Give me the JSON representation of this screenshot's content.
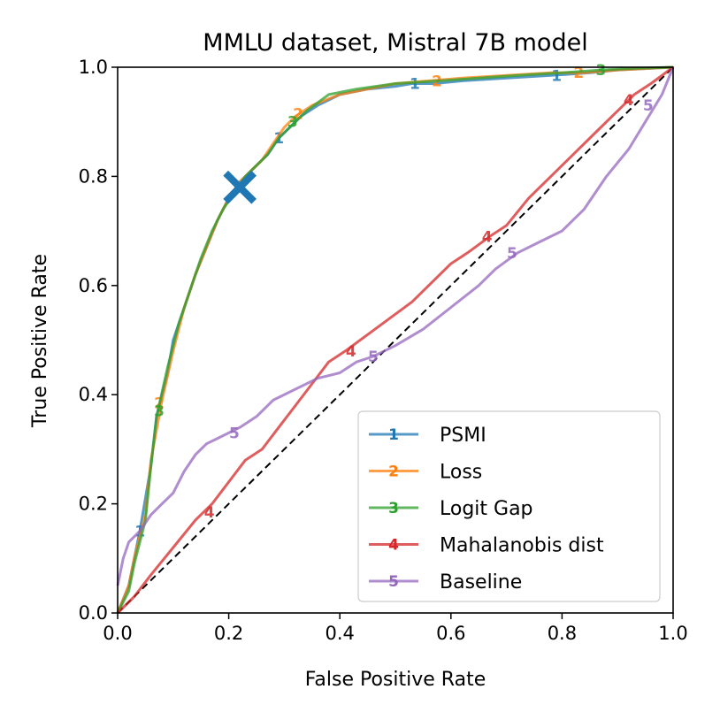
{
  "chart_data": {
    "type": "line",
    "title": "MMLU dataset, Mistral 7B model",
    "xlabel": "False Positive Rate",
    "ylabel": "True Positive Rate",
    "xlim": [
      0.0,
      1.0
    ],
    "ylim": [
      0.0,
      1.0
    ],
    "xticks": [
      "0.0",
      "0.2",
      "0.4",
      "0.6",
      "0.8",
      "1.0"
    ],
    "yticks": [
      "0.0",
      "0.2",
      "0.4",
      "0.6",
      "0.8",
      "1.0"
    ],
    "legend_position": "lower-right",
    "diagonal_reference": true,
    "series": [
      {
        "name": "PSMI",
        "marker": "1",
        "color": "#1f77b4",
        "x": [
          0,
          0.02,
          0.03,
          0.04,
          0.06,
          0.07,
          0.09,
          0.1,
          0.12,
          0.14,
          0.16,
          0.18,
          0.2,
          0.22,
          0.24,
          0.25,
          0.27,
          0.29,
          0.31,
          0.33,
          0.36,
          0.4,
          0.45,
          0.5,
          0.53,
          0.57,
          0.62,
          0.7,
          0.78,
          0.85,
          0.9,
          1.0
        ],
        "y": [
          0,
          0.05,
          0.1,
          0.15,
          0.27,
          0.36,
          0.44,
          0.5,
          0.56,
          0.62,
          0.67,
          0.72,
          0.76,
          0.79,
          0.81,
          0.82,
          0.84,
          0.87,
          0.89,
          0.91,
          0.93,
          0.95,
          0.96,
          0.965,
          0.97,
          0.97,
          0.975,
          0.98,
          0.985,
          0.99,
          0.995,
          1.0
        ],
        "label_points": [
          [
            0.04,
            0.15
          ],
          [
            0.29,
            0.87
          ],
          [
            0.535,
            0.97
          ],
          [
            0.79,
            0.985
          ]
        ]
      },
      {
        "name": "Loss",
        "marker": "2",
        "color": "#ff7f0e",
        "x": [
          0,
          0.02,
          0.03,
          0.05,
          0.06,
          0.08,
          0.1,
          0.12,
          0.14,
          0.16,
          0.18,
          0.2,
          0.22,
          0.24,
          0.26,
          0.28,
          0.3,
          0.32,
          0.35,
          0.4,
          0.45,
          0.5,
          0.56,
          0.62,
          0.7,
          0.78,
          0.84,
          0.9,
          1.0
        ],
        "y": [
          0,
          0.05,
          0.1,
          0.18,
          0.28,
          0.39,
          0.48,
          0.56,
          0.62,
          0.67,
          0.72,
          0.76,
          0.79,
          0.81,
          0.83,
          0.86,
          0.89,
          0.91,
          0.93,
          0.95,
          0.96,
          0.97,
          0.975,
          0.98,
          0.985,
          0.99,
          0.99,
          0.995,
          1.0
        ],
        "label_points": [
          [
            0.075,
            0.385
          ],
          [
            0.325,
            0.915
          ],
          [
            0.575,
            0.975
          ],
          [
            0.83,
            0.99
          ]
        ]
      },
      {
        "name": "Logit Gap",
        "marker": "3",
        "color": "#2ca02c",
        "x": [
          0,
          0.02,
          0.03,
          0.05,
          0.06,
          0.07,
          0.09,
          0.11,
          0.13,
          0.15,
          0.17,
          0.19,
          0.21,
          0.23,
          0.25,
          0.27,
          0.29,
          0.31,
          0.34,
          0.38,
          0.43,
          0.5,
          0.58,
          0.65,
          0.72,
          0.8,
          0.87,
          0.93,
          1.0
        ],
        "y": [
          0,
          0.04,
          0.09,
          0.17,
          0.27,
          0.36,
          0.45,
          0.53,
          0.59,
          0.65,
          0.7,
          0.74,
          0.77,
          0.8,
          0.82,
          0.84,
          0.87,
          0.89,
          0.92,
          0.95,
          0.96,
          0.97,
          0.975,
          0.98,
          0.985,
          0.99,
          0.995,
          0.998,
          1.0
        ],
        "label_points": [
          [
            0.075,
            0.37
          ],
          [
            0.315,
            0.9
          ],
          [
            0.87,
            0.995
          ]
        ]
      },
      {
        "name": "Mahalanobis dist",
        "marker": "4",
        "color": "#d62728",
        "x": [
          0,
          0.03,
          0.06,
          0.1,
          0.14,
          0.17,
          0.2,
          0.23,
          0.26,
          0.29,
          0.32,
          0.35,
          0.38,
          0.41,
          0.45,
          0.49,
          0.53,
          0.57,
          0.6,
          0.63,
          0.67,
          0.7,
          0.74,
          0.78,
          0.82,
          0.86,
          0.9,
          0.93,
          0.96,
          1.0
        ],
        "y": [
          0,
          0.03,
          0.07,
          0.12,
          0.17,
          0.2,
          0.24,
          0.28,
          0.3,
          0.34,
          0.38,
          0.42,
          0.46,
          0.48,
          0.51,
          0.54,
          0.57,
          0.61,
          0.64,
          0.66,
          0.69,
          0.71,
          0.76,
          0.8,
          0.84,
          0.88,
          0.92,
          0.95,
          0.97,
          1.0
        ],
        "label_points": [
          [
            0.165,
            0.185
          ],
          [
            0.42,
            0.48
          ],
          [
            0.665,
            0.69
          ],
          [
            0.92,
            0.94
          ]
        ]
      },
      {
        "name": "Baseline",
        "marker": "5",
        "color": "#9467bd",
        "x": [
          0,
          0.01,
          0.02,
          0.04,
          0.06,
          0.08,
          0.1,
          0.12,
          0.14,
          0.16,
          0.18,
          0.2,
          0.22,
          0.25,
          0.28,
          0.32,
          0.36,
          0.4,
          0.43,
          0.46,
          0.5,
          0.55,
          0.6,
          0.65,
          0.68,
          0.72,
          0.76,
          0.8,
          0.84,
          0.88,
          0.92,
          0.95,
          0.98,
          1.0
        ],
        "y": [
          0.05,
          0.1,
          0.13,
          0.15,
          0.18,
          0.2,
          0.22,
          0.26,
          0.29,
          0.31,
          0.32,
          0.33,
          0.34,
          0.36,
          0.39,
          0.41,
          0.43,
          0.44,
          0.46,
          0.47,
          0.49,
          0.52,
          0.56,
          0.6,
          0.63,
          0.66,
          0.68,
          0.7,
          0.74,
          0.8,
          0.85,
          0.9,
          0.95,
          1.0
        ],
        "label_points": [
          [
            0.21,
            0.33
          ],
          [
            0.46,
            0.47
          ],
          [
            0.71,
            0.66
          ],
          [
            0.955,
            0.93
          ]
        ]
      }
    ],
    "annotations": [
      {
        "type": "x-marker",
        "name": "operating-point",
        "x": 0.22,
        "y": 0.78,
        "color": "#1f77b4"
      }
    ]
  }
}
